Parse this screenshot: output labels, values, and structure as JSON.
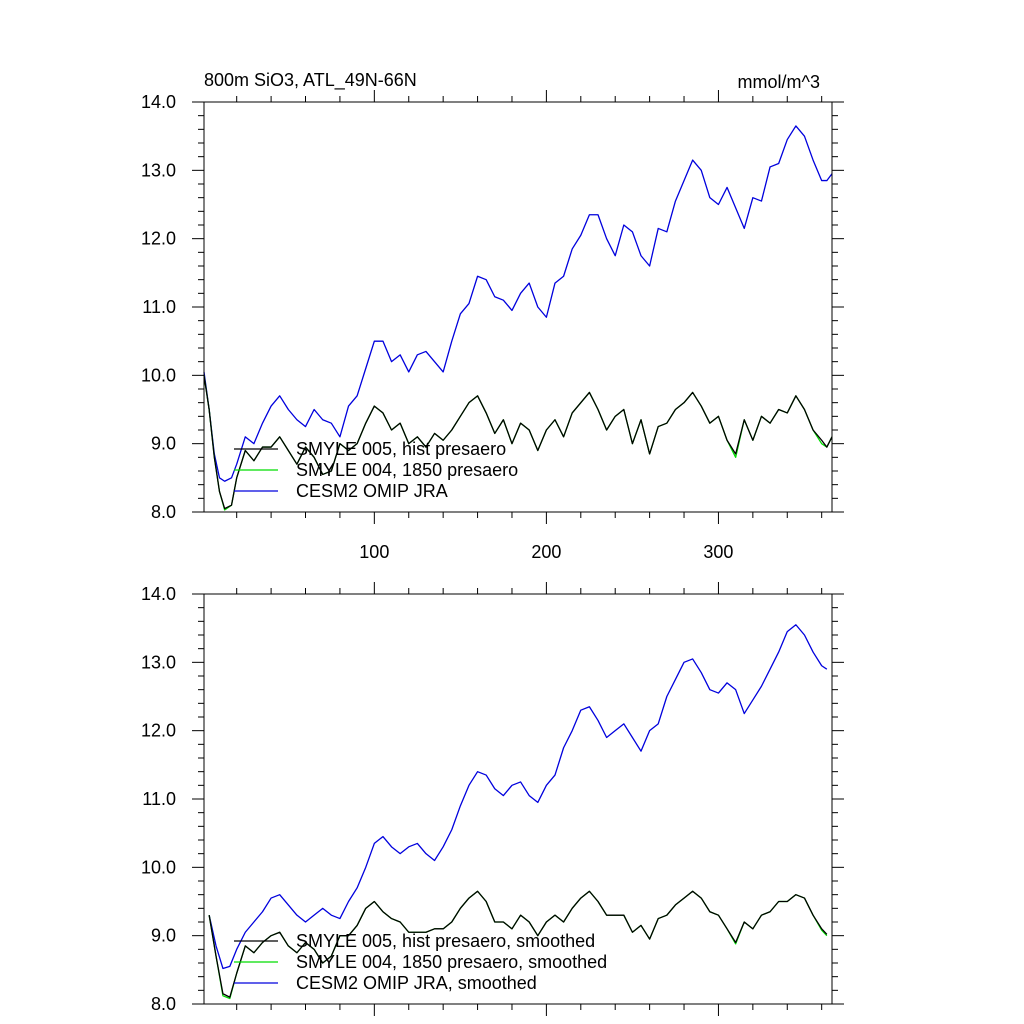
{
  "figure": {
    "title_left": "800m SiO3, ATL_49N-66N",
    "title_right": "mmol/m^3"
  },
  "chart_data": [
    {
      "type": "line",
      "title": "800m SiO3, ATL_49N-66N",
      "units": "mmol/m^3",
      "xlim": [
        1,
        366
      ],
      "ylim": [
        8.0,
        14.0
      ],
      "x_ticks": [
        100,
        200,
        300
      ],
      "x_tick_labels": [
        "100",
        "200",
        "300"
      ],
      "y_ticks": [
        8.0,
        9.0,
        10.0,
        11.0,
        12.0,
        13.0,
        14.0
      ],
      "y_tick_labels": [
        "8.0",
        "9.0",
        "10.0",
        "11.0",
        "12.0",
        "13.0",
        "14.0"
      ],
      "legend_position": "bottom-left",
      "series": [
        {
          "name": "SMYLE 005, hist presaero",
          "color": "#000000",
          "x": [
            1,
            4,
            7,
            10,
            13,
            17,
            20,
            25,
            30,
            35,
            40,
            45,
            50,
            55,
            60,
            65,
            70,
            75,
            80,
            85,
            90,
            95,
            100,
            105,
            110,
            115,
            120,
            125,
            130,
            135,
            140,
            145,
            150,
            155,
            160,
            165,
            170,
            175,
            180,
            185,
            190,
            195,
            200,
            205,
            210,
            215,
            220,
            225,
            230,
            235,
            240,
            245,
            250,
            255,
            260,
            265,
            270,
            275,
            280,
            285,
            290,
            295,
            300,
            305,
            310,
            315,
            320,
            325,
            330,
            335,
            340,
            345,
            350,
            355,
            360,
            363,
            366
          ],
          "y": [
            10.0,
            9.5,
            8.8,
            8.3,
            8.05,
            8.1,
            8.5,
            8.9,
            8.75,
            8.95,
            8.95,
            9.1,
            8.9,
            8.7,
            8.95,
            8.8,
            8.55,
            8.6,
            9.0,
            8.9,
            9.0,
            9.3,
            9.55,
            9.45,
            9.2,
            9.3,
            9.0,
            9.1,
            8.95,
            9.15,
            9.05,
            9.2,
            9.4,
            9.6,
            9.7,
            9.45,
            9.15,
            9.35,
            9.0,
            9.3,
            9.2,
            8.9,
            9.2,
            9.35,
            9.1,
            9.45,
            9.6,
            9.75,
            9.5,
            9.2,
            9.4,
            9.5,
            9.0,
            9.35,
            8.85,
            9.25,
            9.3,
            9.5,
            9.6,
            9.75,
            9.55,
            9.3,
            9.4,
            9.05,
            8.85,
            9.35,
            9.05,
            9.4,
            9.3,
            9.5,
            9.45,
            9.7,
            9.5,
            9.2,
            9.05,
            8.95,
            9.1
          ]
        },
        {
          "name": "SMYLE 004, 1850 presaero",
          "color": "#00dd00",
          "x": [
            1,
            4,
            7,
            10,
            13,
            17,
            20,
            25,
            30,
            35,
            40,
            45,
            50,
            55,
            60,
            65,
            70,
            75,
            80,
            85,
            90,
            95,
            100,
            105,
            110,
            115,
            120,
            125,
            130,
            135,
            140,
            145,
            150,
            155,
            160,
            165,
            170,
            175,
            180,
            185,
            190,
            195,
            200,
            205,
            210,
            215,
            220,
            225,
            230,
            235,
            240,
            245,
            250,
            255,
            260,
            265,
            270,
            275,
            280,
            285,
            290,
            295,
            300,
            305,
            310,
            315,
            320,
            325,
            330,
            335,
            340,
            345,
            350,
            355,
            360,
            363,
            366
          ],
          "y": [
            10.0,
            9.5,
            8.8,
            8.3,
            8.03,
            8.1,
            8.5,
            8.9,
            8.75,
            8.95,
            8.95,
            9.1,
            8.9,
            8.7,
            8.95,
            8.8,
            8.55,
            8.6,
            9.0,
            8.9,
            9.0,
            9.3,
            9.55,
            9.45,
            9.2,
            9.3,
            9.0,
            9.1,
            8.95,
            9.15,
            9.05,
            9.2,
            9.4,
            9.6,
            9.7,
            9.45,
            9.15,
            9.35,
            9.0,
            9.3,
            9.2,
            8.9,
            9.2,
            9.35,
            9.1,
            9.45,
            9.6,
            9.75,
            9.5,
            9.2,
            9.4,
            9.5,
            9.0,
            9.35,
            8.85,
            9.25,
            9.3,
            9.5,
            9.6,
            9.75,
            9.55,
            9.3,
            9.4,
            9.05,
            8.8,
            9.35,
            9.05,
            9.4,
            9.3,
            9.5,
            9.45,
            9.7,
            9.5,
            9.2,
            9.0,
            8.95,
            9.1
          ]
        },
        {
          "name": "CESM2 OMIP JRA",
          "color": "#0000dd",
          "x": [
            1,
            4,
            7,
            10,
            13,
            17,
            20,
            25,
            30,
            35,
            40,
            45,
            50,
            55,
            60,
            65,
            70,
            75,
            80,
            85,
            90,
            95,
            100,
            105,
            110,
            115,
            120,
            125,
            130,
            135,
            140,
            145,
            150,
            155,
            160,
            165,
            170,
            175,
            180,
            185,
            190,
            195,
            200,
            205,
            210,
            215,
            220,
            225,
            230,
            235,
            240,
            245,
            250,
            255,
            260,
            265,
            270,
            275,
            280,
            285,
            290,
            295,
            300,
            305,
            310,
            315,
            320,
            325,
            330,
            335,
            340,
            345,
            350,
            355,
            360,
            363,
            366
          ],
          "y": [
            10.05,
            9.5,
            8.85,
            8.5,
            8.45,
            8.5,
            8.7,
            9.1,
            9.0,
            9.3,
            9.55,
            9.7,
            9.5,
            9.35,
            9.25,
            9.5,
            9.35,
            9.3,
            9.1,
            9.55,
            9.7,
            10.1,
            10.5,
            10.5,
            10.2,
            10.3,
            10.05,
            10.3,
            10.35,
            10.2,
            10.05,
            10.5,
            10.9,
            11.05,
            11.45,
            11.4,
            11.15,
            11.1,
            10.95,
            11.2,
            11.35,
            11.0,
            10.85,
            11.35,
            11.45,
            11.85,
            12.05,
            12.35,
            12.35,
            12.0,
            11.75,
            12.2,
            12.1,
            11.75,
            11.6,
            12.15,
            12.1,
            12.55,
            12.85,
            13.15,
            13.0,
            12.6,
            12.5,
            12.75,
            12.45,
            12.15,
            12.6,
            12.55,
            13.05,
            13.1,
            13.45,
            13.65,
            13.5,
            13.15,
            12.85,
            12.85,
            12.95
          ]
        }
      ]
    },
    {
      "type": "line",
      "xlim": [
        1,
        366
      ],
      "ylim": [
        8.0,
        14.0
      ],
      "y_ticks": [
        8.0,
        9.0,
        10.0,
        11.0,
        12.0,
        13.0,
        14.0
      ],
      "y_tick_labels": [
        "8.0",
        "9.0",
        "10.0",
        "11.0",
        "12.0",
        "13.0",
        "14.0"
      ],
      "x_ticks": [
        100,
        200,
        300
      ],
      "legend_position": "bottom-left",
      "series": [
        {
          "name": "SMYLE 005, hist presaero, smoothed",
          "color": "#000000",
          "x": [
            4,
            8,
            12,
            16,
            20,
            25,
            30,
            35,
            40,
            45,
            50,
            55,
            60,
            65,
            70,
            75,
            80,
            85,
            90,
            95,
            100,
            105,
            110,
            115,
            120,
            125,
            130,
            135,
            140,
            145,
            150,
            155,
            160,
            165,
            170,
            175,
            180,
            185,
            190,
            195,
            200,
            205,
            210,
            215,
            220,
            225,
            230,
            235,
            240,
            245,
            250,
            255,
            260,
            265,
            270,
            275,
            280,
            285,
            290,
            295,
            300,
            305,
            310,
            315,
            320,
            325,
            330,
            335,
            340,
            345,
            350,
            355,
            360,
            363
          ],
          "y": [
            9.3,
            8.7,
            8.15,
            8.1,
            8.45,
            8.85,
            8.75,
            8.9,
            9.0,
            9.05,
            8.85,
            8.75,
            8.9,
            8.8,
            8.6,
            8.7,
            9.0,
            9.0,
            9.15,
            9.4,
            9.5,
            9.35,
            9.25,
            9.2,
            9.05,
            9.05,
            9.05,
            9.1,
            9.1,
            9.2,
            9.4,
            9.55,
            9.65,
            9.5,
            9.2,
            9.2,
            9.1,
            9.3,
            9.2,
            9.0,
            9.2,
            9.3,
            9.2,
            9.4,
            9.55,
            9.65,
            9.5,
            9.3,
            9.3,
            9.3,
            9.05,
            9.15,
            8.95,
            9.25,
            9.3,
            9.45,
            9.55,
            9.65,
            9.55,
            9.35,
            9.3,
            9.1,
            8.9,
            9.2,
            9.1,
            9.3,
            9.35,
            9.5,
            9.5,
            9.6,
            9.55,
            9.3,
            9.1,
            9.02
          ]
        },
        {
          "name": "SMYLE 004, 1850 presaero, smoothed",
          "color": "#00dd00",
          "x": [
            4,
            8,
            12,
            16,
            20,
            25,
            30,
            35,
            40,
            45,
            50,
            55,
            60,
            65,
            70,
            75,
            80,
            85,
            90,
            95,
            100,
            105,
            110,
            115,
            120,
            125,
            130,
            135,
            140,
            145,
            150,
            155,
            160,
            165,
            170,
            175,
            180,
            185,
            190,
            195,
            200,
            205,
            210,
            215,
            220,
            225,
            230,
            235,
            240,
            245,
            250,
            255,
            260,
            265,
            270,
            275,
            280,
            285,
            290,
            295,
            300,
            305,
            310,
            315,
            320,
            325,
            330,
            335,
            340,
            345,
            350,
            355,
            360,
            363
          ],
          "y": [
            9.3,
            8.7,
            8.12,
            8.08,
            8.45,
            8.85,
            8.75,
            8.9,
            9.0,
            9.05,
            8.85,
            8.75,
            8.9,
            8.8,
            8.6,
            8.7,
            9.0,
            9.0,
            9.15,
            9.4,
            9.5,
            9.35,
            9.25,
            9.2,
            9.05,
            9.05,
            9.05,
            9.1,
            9.1,
            9.2,
            9.4,
            9.55,
            9.65,
            9.5,
            9.2,
            9.2,
            9.1,
            9.3,
            9.2,
            9.0,
            9.2,
            9.3,
            9.2,
            9.4,
            9.55,
            9.65,
            9.5,
            9.3,
            9.3,
            9.3,
            9.05,
            9.15,
            8.95,
            9.25,
            9.3,
            9.45,
            9.55,
            9.65,
            9.55,
            9.35,
            9.3,
            9.1,
            8.88,
            9.2,
            9.1,
            9.3,
            9.35,
            9.5,
            9.5,
            9.6,
            9.55,
            9.3,
            9.08,
            9.0
          ]
        },
        {
          "name": "CESM2 OMIP JRA, smoothed",
          "color": "#0000dd",
          "x": [
            4,
            8,
            12,
            16,
            20,
            25,
            30,
            35,
            40,
            45,
            50,
            55,
            60,
            65,
            70,
            75,
            80,
            85,
            90,
            95,
            100,
            105,
            110,
            115,
            120,
            125,
            130,
            135,
            140,
            145,
            150,
            155,
            160,
            165,
            170,
            175,
            180,
            185,
            190,
            195,
            200,
            205,
            210,
            215,
            220,
            225,
            230,
            235,
            240,
            245,
            250,
            255,
            260,
            265,
            270,
            275,
            280,
            285,
            290,
            295,
            300,
            305,
            310,
            315,
            320,
            325,
            330,
            335,
            340,
            345,
            350,
            355,
            360,
            363
          ],
          "y": [
            9.3,
            8.85,
            8.52,
            8.55,
            8.8,
            9.05,
            9.2,
            9.35,
            9.55,
            9.6,
            9.45,
            9.3,
            9.2,
            9.3,
            9.4,
            9.3,
            9.25,
            9.5,
            9.7,
            10.0,
            10.35,
            10.45,
            10.3,
            10.2,
            10.3,
            10.35,
            10.2,
            10.1,
            10.3,
            10.55,
            10.9,
            11.2,
            11.4,
            11.35,
            11.15,
            11.05,
            11.2,
            11.25,
            11.05,
            10.95,
            11.2,
            11.35,
            11.75,
            12.0,
            12.3,
            12.35,
            12.15,
            11.9,
            12.0,
            12.1,
            11.9,
            11.7,
            12.0,
            12.1,
            12.5,
            12.75,
            13.0,
            13.05,
            12.85,
            12.6,
            12.55,
            12.7,
            12.6,
            12.25,
            12.45,
            12.65,
            12.9,
            13.15,
            13.45,
            13.55,
            13.4,
            13.15,
            12.95,
            12.9
          ]
        }
      ]
    }
  ]
}
